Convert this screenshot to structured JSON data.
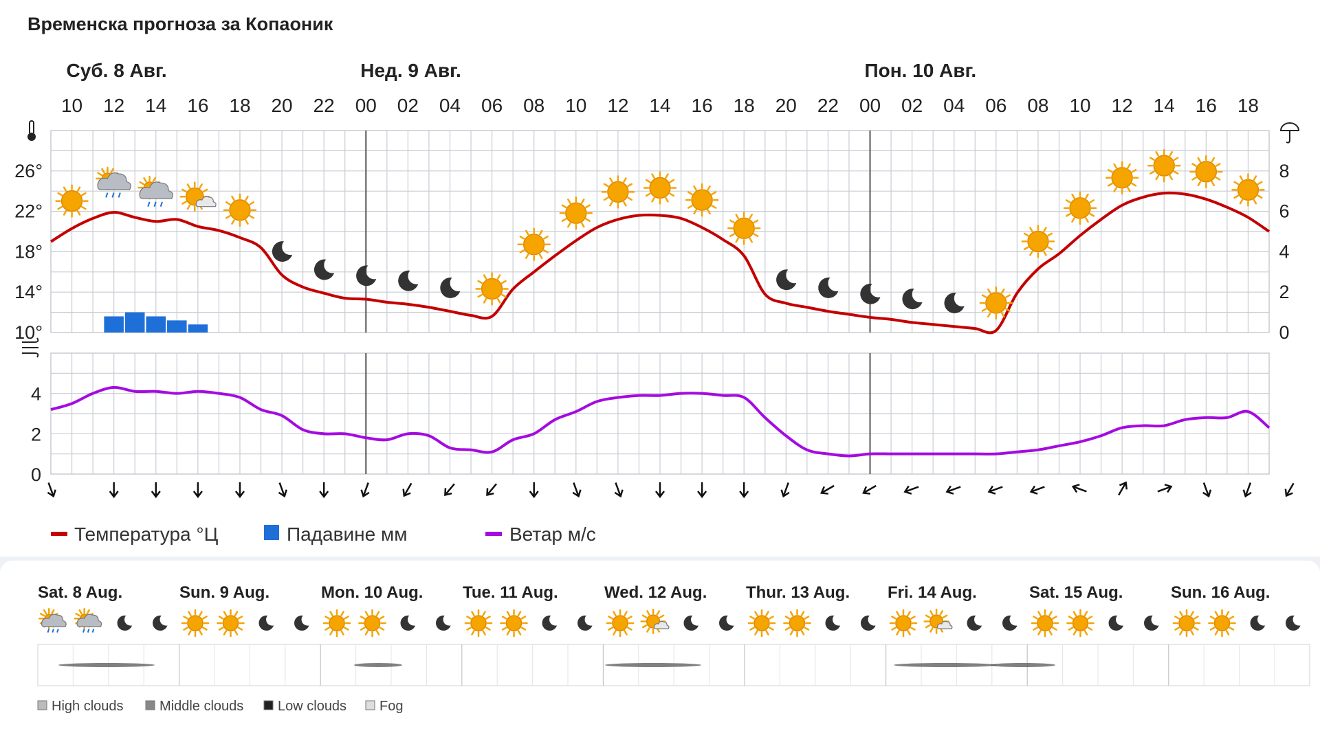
{
  "title": "Временска прогноза за Копаоник",
  "day_headers": [
    {
      "label": "Суб. 8 Авг.",
      "at_hour": 10
    },
    {
      "label": "Нед. 9 Авг.",
      "at_hour": 24
    },
    {
      "label": "Пон. 10 Авг.",
      "at_hour": 48
    }
  ],
  "hour_labels": [
    "10",
    "12",
    "14",
    "16",
    "18",
    "20",
    "22",
    "00",
    "02",
    "04",
    "06",
    "08",
    "10",
    "12",
    "14",
    "16",
    "18",
    "20",
    "22",
    "00",
    "02",
    "04",
    "06",
    "08",
    "10",
    "12",
    "14",
    "16",
    "18"
  ],
  "icons": {
    "sun": "sun-icon",
    "moon": "moon-icon",
    "rain": "cloud-rain-icon",
    "partly": "sun-behind-cloud-icon",
    "thermometer": "thermometer-icon",
    "umbrella": "umbrella-icon",
    "wind": "wind-icon"
  },
  "colors": {
    "temperature": "#c40000",
    "precipitation": "#1f6fd8",
    "wind": "#a40be0",
    "grid": "#c8ccd2",
    "sun": "#f5a400",
    "moon": "#333333"
  },
  "chart_data": [
    {
      "type": "line",
      "title": "Временска прогноза за Копаоник",
      "x_unit": "hours from Sat 8 Aug 00:00",
      "xlim": [
        9,
        67
      ],
      "y_left": {
        "ticks": [
          "10°",
          "14°",
          "18°",
          "22°",
          "26°"
        ],
        "ylim": [
          10,
          30
        ]
      },
      "y_right": {
        "ticks": [
          "0",
          "2",
          "4",
          "6",
          "8"
        ],
        "ylim": [
          0,
          10
        ]
      },
      "series": [
        {
          "name": "Температура °Ц",
          "axis": "left",
          "x": [
            9,
            10,
            11,
            12,
            13,
            14,
            15,
            16,
            17,
            18,
            19,
            20,
            21,
            22,
            23,
            24,
            25,
            26,
            27,
            28,
            29,
            30,
            31,
            32,
            33,
            34,
            35,
            36,
            37,
            38,
            39,
            40,
            41,
            42,
            43,
            44,
            45,
            46,
            47,
            48,
            49,
            50,
            51,
            52,
            53,
            54,
            55,
            56,
            57,
            58,
            59,
            60,
            61,
            62,
            63,
            64,
            65,
            66,
            67
          ],
          "values": [
            19,
            20.3,
            21.3,
            21.9,
            21.4,
            21,
            21.2,
            20.5,
            20.1,
            19.4,
            18.4,
            15.7,
            14.5,
            13.9,
            13.4,
            13.3,
            13.0,
            12.8,
            12.5,
            12.1,
            11.7,
            11.6,
            14.3,
            16,
            17.6,
            19.1,
            20.4,
            21.2,
            21.6,
            21.6,
            21.3,
            20.4,
            19.2,
            17.6,
            13.8,
            12.9,
            12.5,
            12.1,
            11.8,
            11.5,
            11.3,
            11.0,
            10.8,
            10.6,
            10.4,
            10.2,
            13.9,
            16.3,
            17.8,
            19.6,
            21.2,
            22.6,
            23.4,
            23.8,
            23.7,
            23.2,
            22.4,
            21.4,
            20
          ]
        },
        {
          "name": "Падавине мм",
          "axis": "right",
          "type": "bar",
          "x": [
            12,
            13,
            14,
            15,
            16
          ],
          "values": [
            0.8,
            1.0,
            0.8,
            0.6,
            0.4
          ]
        }
      ]
    },
    {
      "type": "line",
      "xlim": [
        9,
        67
      ],
      "y": {
        "ticks": [
          "0",
          "2",
          "4"
        ],
        "ylim": [
          0,
          6
        ]
      },
      "series": [
        {
          "name": "Ветар м/с",
          "x": [
            9,
            10,
            11,
            12,
            13,
            14,
            15,
            16,
            17,
            18,
            19,
            20,
            21,
            22,
            23,
            24,
            25,
            26,
            27,
            28,
            29,
            30,
            31,
            32,
            33,
            34,
            35,
            36,
            37,
            38,
            39,
            40,
            41,
            42,
            43,
            44,
            45,
            46,
            47,
            48,
            49,
            50,
            51,
            52,
            53,
            54,
            55,
            56,
            57,
            58,
            59,
            60,
            61,
            62,
            63,
            64,
            65,
            66,
            67
          ],
          "values": [
            3.2,
            3.5,
            4.0,
            4.3,
            4.1,
            4.1,
            4.0,
            4.1,
            4.0,
            3.8,
            3.2,
            2.9,
            2.2,
            2.0,
            2.0,
            1.8,
            1.7,
            2.0,
            1.9,
            1.3,
            1.2,
            1.1,
            1.7,
            2.0,
            2.7,
            3.1,
            3.6,
            3.8,
            3.9,
            3.9,
            4.0,
            4.0,
            3.9,
            3.8,
            2.8,
            1.9,
            1.2,
            1.0,
            0.9,
            1.0,
            1.0,
            1.0,
            1.0,
            1.0,
            1.0,
            1.0,
            1.1,
            1.2,
            1.4,
            1.6,
            1.9,
            2.3,
            2.4,
            2.4,
            2.7,
            2.8,
            2.8,
            3.1,
            2.3
          ]
        }
      ]
    }
  ],
  "weather_icons": [
    "sun",
    "rain",
    "rain",
    "partly",
    "sun",
    "moon",
    "moon",
    "moon",
    "moon",
    "moon",
    "sun",
    "sun",
    "sun",
    "sun",
    "sun",
    "sun",
    "sun",
    "moon",
    "moon",
    "moon",
    "moon",
    "moon",
    "sun",
    "sun",
    "sun",
    "sun",
    "sun",
    "sun",
    "sun"
  ],
  "wind_directions_deg": [
    340,
    0,
    0,
    0,
    0,
    340,
    0,
    20,
    30,
    40,
    40,
    0,
    340,
    340,
    0,
    0,
    0,
    20,
    60,
    60,
    70,
    70,
    70,
    70,
    110,
    210,
    250,
    340,
    20,
    30
  ],
  "legend": {
    "temp": "Температура °Ц",
    "precip": "Падавине мм",
    "wind": "Ветар м/с"
  },
  "week": {
    "days": [
      "Sat. 8 Aug.",
      "Sun. 9 Aug.",
      "Mon. 10 Aug.",
      "Tue. 11 Aug.",
      "Wed. 12 Aug.",
      "Thur. 13 Aug.",
      "Fri. 14 Aug.",
      "Sat. 15 Aug.",
      "Sun. 16 Aug."
    ],
    "icons": [
      "rain",
      "rain",
      "moon",
      "moon",
      "sun",
      "sun",
      "moon",
      "moon",
      "sun",
      "sun",
      "moon",
      "moon",
      "sun",
      "sun",
      "moon",
      "moon",
      "sun",
      "partly",
      "moon",
      "moon",
      "sun",
      "sun",
      "moon",
      "moon",
      "sun",
      "partly",
      "moon",
      "moon",
      "sun",
      "sun",
      "moon",
      "moon",
      "sun",
      "sun",
      "moon",
      "moon"
    ],
    "cloud_legend": [
      "High clouds",
      "Middle clouds",
      "Low clouds",
      "Fog"
    ]
  }
}
